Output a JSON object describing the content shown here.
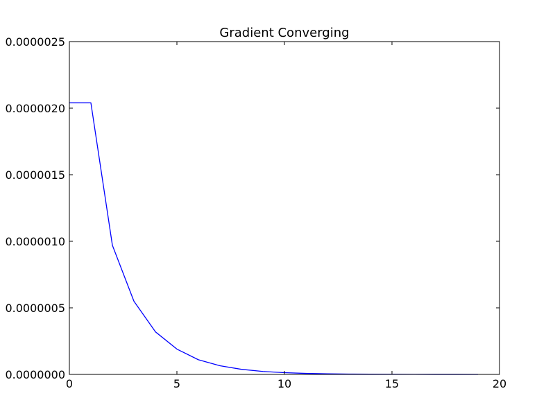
{
  "chart_data": {
    "type": "line",
    "title": "Gradient Converging",
    "xlabel": "",
    "ylabel": "",
    "xlim": [
      0,
      20
    ],
    "ylim": [
      0,
      2.5e-06
    ],
    "x_ticks": [
      0,
      5,
      10,
      15,
      20
    ],
    "x_tick_labels": [
      "0",
      "5",
      "10",
      "15",
      "20"
    ],
    "y_ticks": [
      0,
      5e-07,
      1e-06,
      1.5e-06,
      2e-06,
      2.5e-06
    ],
    "y_tick_labels": [
      "0.0000000",
      "0.0000005",
      "0.0000010",
      "0.0000015",
      "0.0000020",
      "0.0000025"
    ],
    "grid": false,
    "legend": "none",
    "series": [
      {
        "color": "#0000ff",
        "x": [
          0,
          1,
          2,
          3,
          4,
          5,
          6,
          7,
          8,
          9,
          10,
          11,
          12,
          13,
          14,
          15,
          16,
          17,
          18,
          19
        ],
        "y": [
          2.04e-06,
          2.04e-06,
          9.7e-07,
          5.5e-07,
          3.2e-07,
          1.9e-07,
          1.1e-07,
          6.5e-08,
          3.8e-08,
          2.2e-08,
          1.3e-08,
          7.5e-09,
          4.4e-09,
          2.6e-09,
          1.5e-09,
          9e-10,
          5e-10,
          3e-10,
          2e-10,
          1e-10
        ]
      }
    ]
  }
}
